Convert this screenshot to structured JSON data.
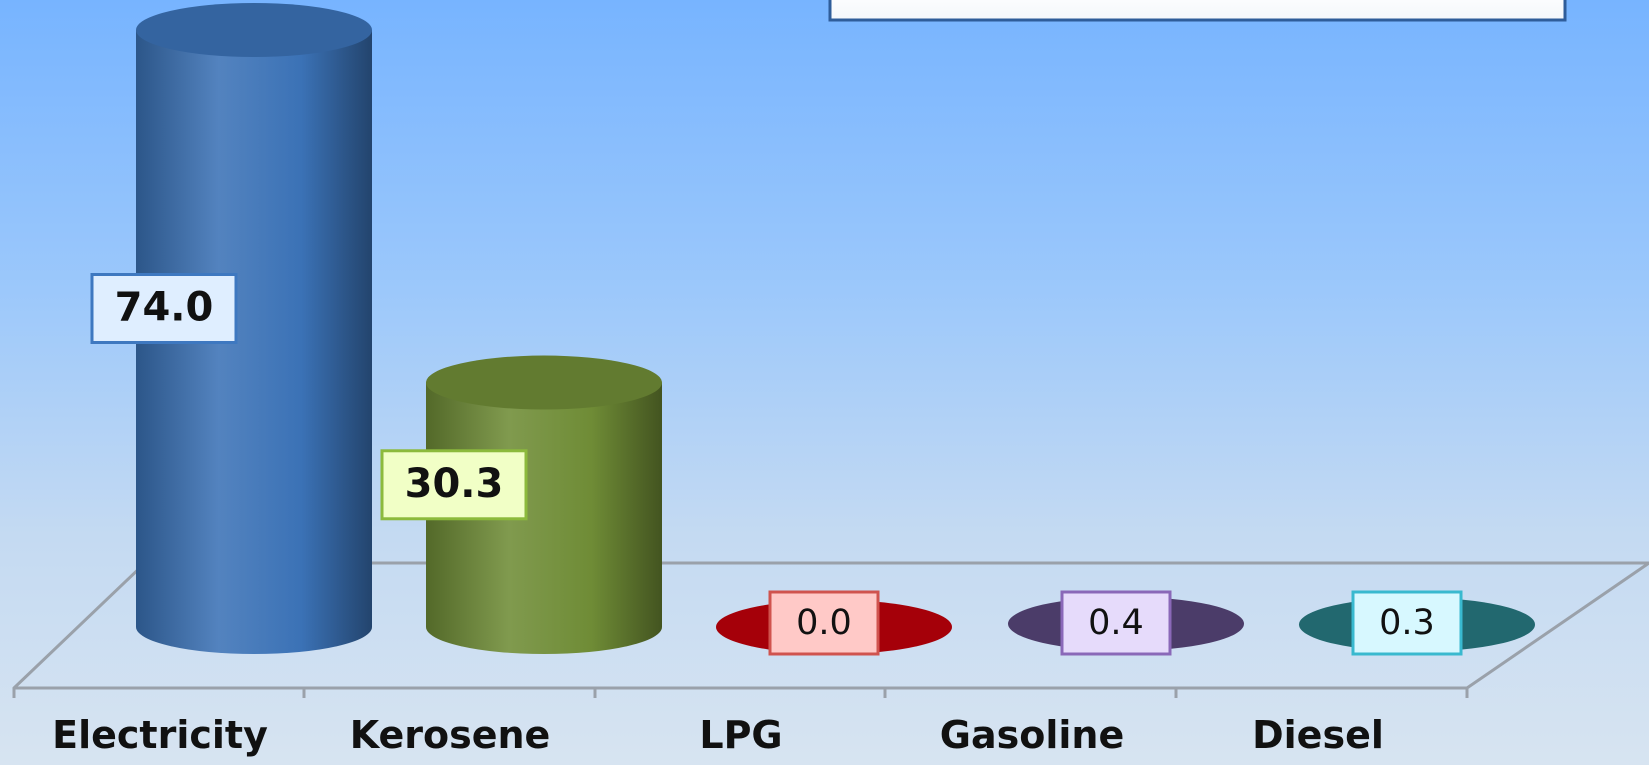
{
  "chart_data": {
    "type": "bar",
    "style": "3d-cylinder",
    "categories": [
      "Electricity",
      "Kerosene",
      "LPG",
      "Gasoline",
      "Diesel"
    ],
    "values": [
      74.0,
      30.3,
      0.0,
      0.4,
      0.3
    ],
    "data_labels": [
      "74.0",
      "30.3",
      "0.0",
      "0.4",
      "0.3"
    ],
    "bar_colors": [
      "#3b72b6",
      "#6f8c36",
      "#a50009",
      "#4b3c69",
      "#22686f"
    ],
    "label_fills": [
      "#dfeeff",
      "#f1ffc6",
      "#ffc9c7",
      "#e6dbfb",
      "#d7f8ff"
    ],
    "label_borders": [
      "#3e78c0",
      "#8cba3c",
      "#d0534e",
      "#8a68b8",
      "#39b9cf"
    ],
    "ylim": [
      0,
      74
    ],
    "grid": false,
    "legend": "top-right"
  }
}
